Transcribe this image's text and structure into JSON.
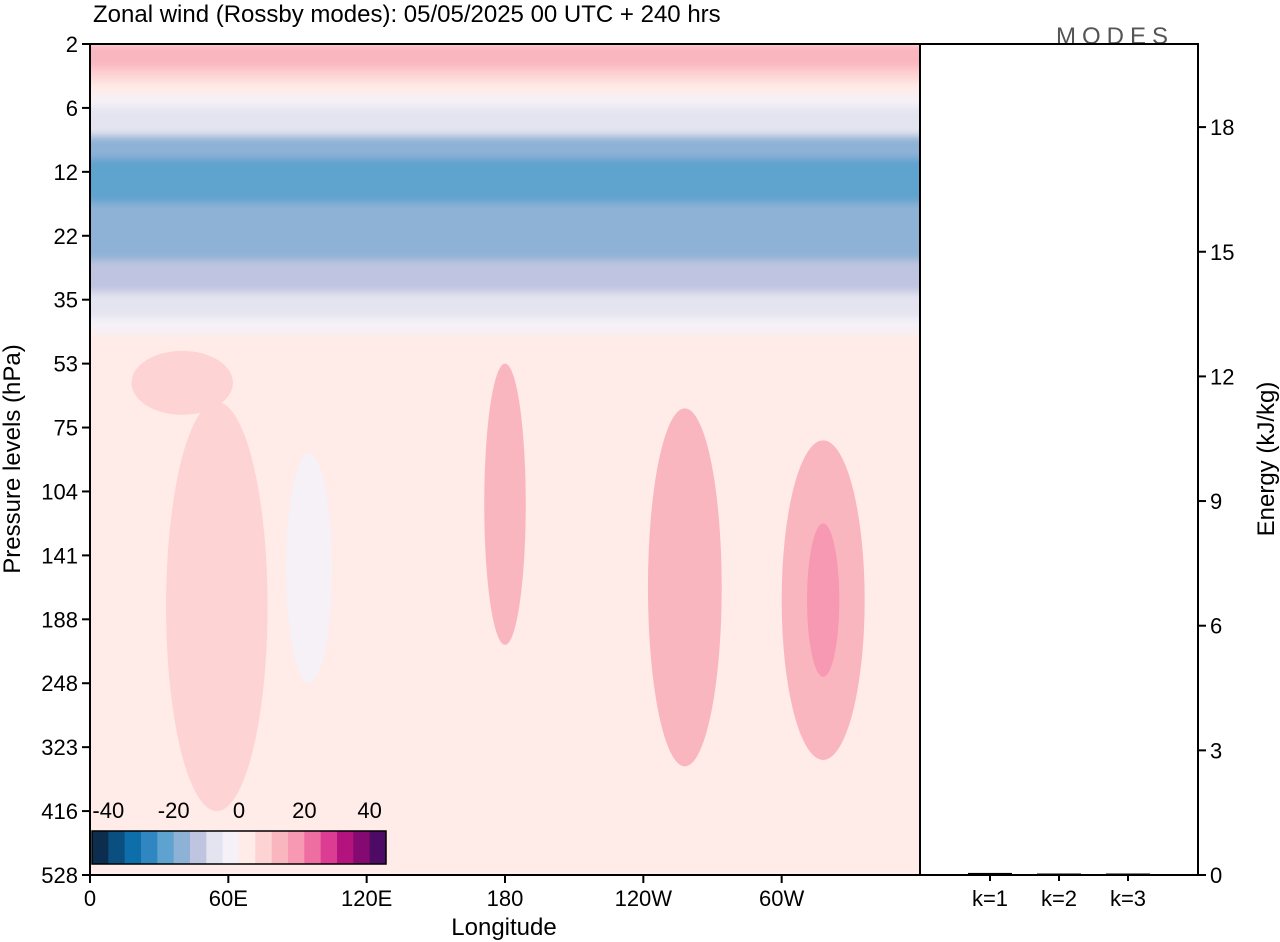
{
  "chart_data": [
    {
      "type": "heatmap",
      "title": "Zonal wind (Rossby modes):  05/05/2025  00 UTC  + 240 hrs",
      "logo": "MODES",
      "xlabel": "Longitude",
      "ylabel": "Pressure levels (hPa)",
      "x_ticks": [
        {
          "lon": 0,
          "label": "0"
        },
        {
          "lon": 60,
          "label": "60E"
        },
        {
          "lon": 120,
          "label": "120E"
        },
        {
          "lon": 180,
          "label": "180"
        },
        {
          "lon": 240,
          "label": "120W"
        },
        {
          "lon": 300,
          "label": "60W"
        }
      ],
      "xlim": [
        0,
        360
      ],
      "y_levels": [
        "2",
        "6",
        "12",
        "22",
        "35",
        "53",
        "75",
        "104",
        "141",
        "188",
        "248",
        "323",
        "416",
        "528"
      ],
      "colorbar": {
        "labels": [
          "-40",
          "-20",
          "0",
          "20",
          "40"
        ],
        "bounds": [
          -45,
          45
        ],
        "colors": [
          "#0d2d4f",
          "#0b4f80",
          "#0d6ea9",
          "#2f86c0",
          "#5ea3cf",
          "#8eb2d6",
          "#bfc5e0",
          "#e4e4f0",
          "#f5f1f6",
          "#ffebe8",
          "#fdd3d3",
          "#fab6bf",
          "#f799b2",
          "#ef6ea1",
          "#dc3c91",
          "#b4137d",
          "#840a72",
          "#4e0b66"
        ]
      },
      "bands": [
        {
          "top": 0.0,
          "bottom": 0.4,
          "value": 14
        },
        {
          "top": 0.4,
          "bottom": 0.6,
          "value": 6
        },
        {
          "top": 0.6,
          "bottom": 0.8,
          "value": 2
        },
        {
          "top": 0.8,
          "bottom": 1.0,
          "value": -2
        },
        {
          "top": 1.0,
          "bottom": 1.2,
          "value": -6
        },
        {
          "top": 1.2,
          "bottom": 1.45,
          "value": -10
        },
        {
          "top": 1.45,
          "bottom": 1.8,
          "value": -18
        },
        {
          "top": 1.8,
          "bottom": 2.5,
          "value": -22
        },
        {
          "top": 2.5,
          "bottom": 3.4,
          "value": -18
        },
        {
          "top": 3.4,
          "bottom": 3.9,
          "value": -14
        },
        {
          "top": 3.9,
          "bottom": 4.3,
          "value": -6
        },
        {
          "top": 4.3,
          "bottom": 4.55,
          "value": -2
        },
        {
          "top": 4.55,
          "bottom": 13.0,
          "value": 2
        }
      ],
      "features": [
        {
          "lon": 180,
          "level": 7.2,
          "rlon": 9,
          "rlev": 2.2,
          "value": 14
        },
        {
          "lon": 258,
          "level": 8.5,
          "rlon": 16,
          "rlev": 2.8,
          "value": 10
        },
        {
          "lon": 318,
          "level": 8.7,
          "rlon": 18,
          "rlev": 2.5,
          "value": 14
        },
        {
          "lon": 318,
          "level": 8.7,
          "rlon": 7,
          "rlev": 1.2,
          "value": 18
        },
        {
          "lon": 55,
          "level": 8.8,
          "rlon": 22,
          "rlev": 3.2,
          "value": 6
        },
        {
          "lon": 95,
          "level": 8.2,
          "rlon": 10,
          "rlev": 1.8,
          "value": -2
        },
        {
          "lon": 40,
          "level": 5.3,
          "rlon": 22,
          "rlev": 0.5,
          "value": 6
        }
      ],
      "bars": [
        {
          "label": "k=1",
          "value": 0.05
        },
        {
          "label": "k=2",
          "value": 0.02
        },
        {
          "label": "k=3",
          "value": 0.01
        }
      ],
      "energy_label": "Energy (kJ/kg)",
      "energy_ticks": [
        "0",
        "3",
        "6",
        "9",
        "12",
        "15",
        "18"
      ],
      "energy_lim": [
        0,
        20
      ]
    }
  ]
}
